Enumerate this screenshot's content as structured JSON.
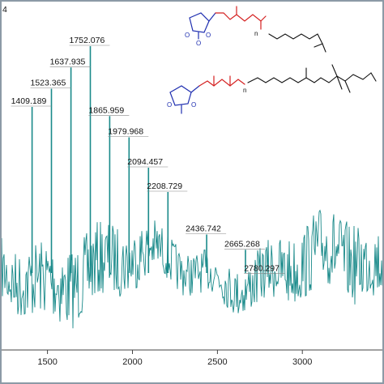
{
  "chart_data": {
    "type": "line",
    "title": "",
    "xlabel": "",
    "ylabel": "",
    "xlim": [
      1230,
      3490
    ],
    "x_ticks": [
      1500,
      2000,
      2500,
      3000
    ],
    "trace_color": "#1a8a8a",
    "label_color": "#111111",
    "peaks": [
      {
        "x": 1409.189,
        "label": "1409.189",
        "height": 0.8
      },
      {
        "x": 1523.365,
        "label": "1523.365",
        "height": 0.86
      },
      {
        "x": 1637.935,
        "label": "1637.935",
        "height": 0.93
      },
      {
        "x": 1752.076,
        "label": "1752.076",
        "height": 1.0
      },
      {
        "x": 1865.959,
        "label": "1865.959",
        "height": 0.77
      },
      {
        "x": 1979.968,
        "label": "1979.968",
        "height": 0.7
      },
      {
        "x": 2094.457,
        "label": "2094.457",
        "height": 0.6
      },
      {
        "x": 2208.729,
        "label": "2208.729",
        "height": 0.52
      },
      {
        "x": 2436.742,
        "label": "2436.742",
        "height": 0.38
      },
      {
        "x": 2665.268,
        "label": "2665.268",
        "height": 0.33
      },
      {
        "x": 2780.297,
        "label": "2780.297",
        "height": 0.25
      }
    ],
    "clipped_label_fragment": "4",
    "structure_annotation": {
      "chain_label": "n",
      "ring_oxygen": "O",
      "colors": {
        "ring": "#1f2fb0",
        "linker": "#d42020",
        "backbone": "#111111"
      }
    }
  }
}
